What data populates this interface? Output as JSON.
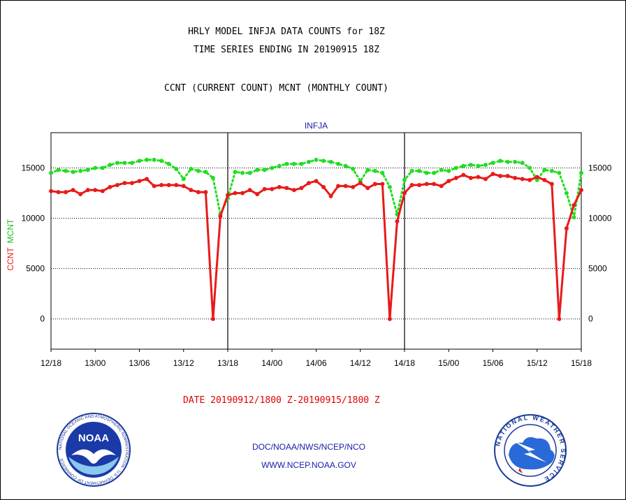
{
  "title_line1": "HRLY MODEL INFJA DATA COUNTS for 18Z",
  "title_line2": "TIME SERIES ENDING IN 20190915 18Z",
  "subtitle": "CCNT (CURRENT COUNT) MCNT (MONTHLY COUNT)",
  "date_label": "DATE 20190912/1800 Z-20190915/1800 Z",
  "credit_line1": "DOC/NOAA/NWS/NCEP/NCO",
  "credit_line2": "WWW.NCEP.NOAA.GOV",
  "logos": {
    "noaa_text": "NOAA",
    "nws_ring_text": "NATIONAL WEATHER SERVICE",
    "noaa_ring_text": "NATIONAL OCEANIC AND ATMOSPHERIC ADMINISTRATION · U.S. DEPARTMENT OF COMMERCE"
  },
  "chart_data": {
    "type": "line",
    "title": "INFJA",
    "xlabel": "",
    "ylabel_series_labels": [
      "CCNT",
      "MCNT"
    ],
    "ylim": [
      -3000,
      18500
    ],
    "yticks": [
      0,
      5000,
      10000,
      15000
    ],
    "ytick_labels": [
      "0",
      "5000",
      "10000",
      "15000"
    ],
    "xlim": [
      0,
      72
    ],
    "xticks": [
      0,
      6,
      12,
      18,
      24,
      30,
      36,
      42,
      48,
      54,
      60,
      66,
      72
    ],
    "xtick_labels": [
      "12/18",
      "13/00",
      "13/06",
      "13/12",
      "13/18",
      "14/00",
      "14/06",
      "14/12",
      "14/18",
      "15/00",
      "15/06",
      "15/12",
      "15/18"
    ],
    "day_separators": [
      24,
      48
    ],
    "grid": "horizontal dotted at y ticks",
    "colors": {
      "ccnt": "#e81a1a",
      "mcnt": "#22dd22",
      "axis_labels": "#1a1aa8",
      "text": "#000000"
    },
    "series": [
      {
        "name": "CCNT",
        "style": "solid line with dot markers",
        "x": [
          0,
          1,
          2,
          3,
          4,
          5,
          6,
          7,
          8,
          9,
          10,
          11,
          12,
          13,
          14,
          15,
          16,
          17,
          18,
          19,
          20,
          21,
          22,
          23,
          24,
          25,
          26,
          27,
          28,
          29,
          30,
          31,
          32,
          33,
          34,
          35,
          36,
          37,
          38,
          39,
          40,
          41,
          42,
          43,
          44,
          45,
          46,
          47,
          48,
          49,
          50,
          51,
          52,
          53,
          54,
          55,
          56,
          57,
          58,
          59,
          60,
          61,
          62,
          63,
          64,
          65,
          66,
          67,
          68,
          69,
          70,
          71,
          72
        ],
        "values": [
          12700,
          12600,
          12600,
          12800,
          12400,
          12800,
          12800,
          12700,
          13100,
          13300,
          13500,
          13500,
          13700,
          13900,
          13200,
          13300,
          13300,
          13300,
          13200,
          12800,
          12600,
          12600,
          0,
          10200,
          12300,
          12500,
          12500,
          12800,
          12400,
          12900,
          12900,
          13100,
          13000,
          12800,
          13000,
          13500,
          13700,
          13100,
          12200,
          13200,
          13200,
          13100,
          13500,
          13000,
          13400,
          13400,
          0,
          9700,
          12500,
          13300,
          13300,
          13400,
          13400,
          13200,
          13700,
          14000,
          14300,
          14000,
          14100,
          13900,
          14400,
          14200,
          14200,
          14000,
          13900,
          13800,
          14100,
          13800,
          13400,
          0,
          9000,
          11300,
          12800
        ]
      },
      {
        "name": "MCNT",
        "style": "dotted line with dot markers",
        "x": [
          0,
          1,
          2,
          3,
          4,
          5,
          6,
          7,
          8,
          9,
          10,
          11,
          12,
          13,
          14,
          15,
          16,
          17,
          18,
          19,
          20,
          21,
          22,
          23,
          24,
          25,
          26,
          27,
          28,
          29,
          30,
          31,
          32,
          33,
          34,
          35,
          36,
          37,
          38,
          39,
          40,
          41,
          42,
          43,
          44,
          45,
          46,
          47,
          48,
          49,
          50,
          51,
          52,
          53,
          54,
          55,
          56,
          57,
          58,
          59,
          60,
          61,
          62,
          63,
          64,
          65,
          66,
          67,
          68,
          69,
          70,
          71,
          72
        ],
        "values": [
          14500,
          14800,
          14700,
          14600,
          14700,
          14800,
          15000,
          15000,
          15300,
          15500,
          15500,
          15500,
          15700,
          15800,
          15800,
          15700,
          15400,
          14900,
          13900,
          14900,
          14700,
          14600,
          14000,
          10400,
          12000,
          14600,
          14500,
          14500,
          14800,
          14800,
          15000,
          15200,
          15400,
          15400,
          15400,
          15600,
          15800,
          15700,
          15600,
          15400,
          15200,
          14900,
          13700,
          14800,
          14700,
          14500,
          13100,
          10400,
          13800,
          14700,
          14700,
          14500,
          14500,
          14800,
          14700,
          15000,
          15200,
          15300,
          15200,
          15300,
          15500,
          15700,
          15600,
          15600,
          15500,
          15000,
          13800,
          14800,
          14700,
          14500,
          12500,
          10100,
          14500
        ]
      }
    ]
  }
}
